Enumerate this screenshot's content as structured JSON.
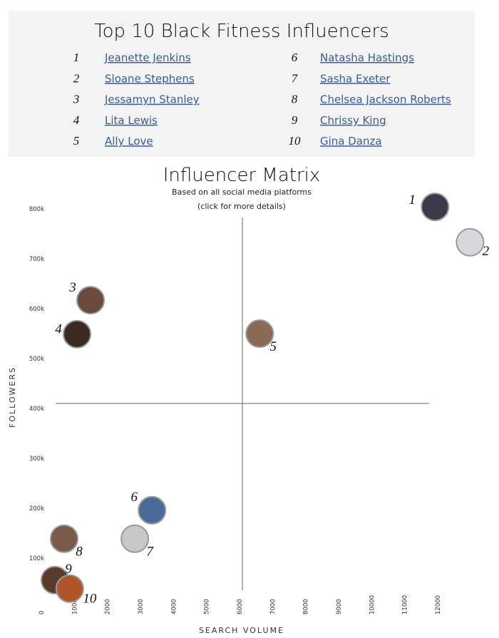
{
  "header": {
    "title": "Top 10 Black Fitness Influencers"
  },
  "list": {
    "items": [
      {
        "rank": "1",
        "name": "Jeanette Jenkins"
      },
      {
        "rank": "2",
        "name": "Sloane Stephens"
      },
      {
        "rank": "3",
        "name": "Jessamyn Stanley"
      },
      {
        "rank": "4",
        "name": "Lita Lewis"
      },
      {
        "rank": "5",
        "name": "Ally Love"
      },
      {
        "rank": "6",
        "name": "Natasha Hastings"
      },
      {
        "rank": "7",
        "name": "Sasha Exeter"
      },
      {
        "rank": "8",
        "name": "Chelsea Jackson Roberts"
      },
      {
        "rank": "9",
        "name": "Chrissy King"
      },
      {
        "rank": "10",
        "name": "Gina Danza"
      }
    ]
  },
  "chart_data": {
    "type": "scatter",
    "title": "Influencer Matrix",
    "subtitle": [
      "Based on all social media platforms",
      "(click for more details)"
    ],
    "x_label": "SEARCH VOLUME",
    "y_label": "FOLLOWERS",
    "x": [
      11920,
      12980,
      1490,
      1080,
      6610,
      3350,
      2830,
      690,
      410,
      860
    ],
    "values": [
      804000,
      733000,
      617000,
      549000,
      550000,
      196000,
      139000,
      139000,
      56000,
      39000
    ],
    "xlim": [
      0,
      13500
    ],
    "ylim": [
      0,
      830000
    ],
    "xticks": [
      0,
      1000,
      2000,
      3000,
      4000,
      5000,
      6000,
      7000,
      8000,
      9000,
      10000,
      11000,
      12000
    ],
    "yticks": [
      {
        "value": 100000,
        "label": "100k"
      },
      {
        "value": 200000,
        "label": "200k"
      },
      {
        "value": 300000,
        "label": "300k"
      },
      {
        "value": 400000,
        "label": "400k"
      },
      {
        "value": 500000,
        "label": "500k"
      },
      {
        "value": 600000,
        "label": "600k"
      },
      {
        "value": 700000,
        "label": "700k"
      },
      {
        "value": 800000,
        "label": "800k"
      }
    ],
    "color": "#9a9a9a"
  }
}
